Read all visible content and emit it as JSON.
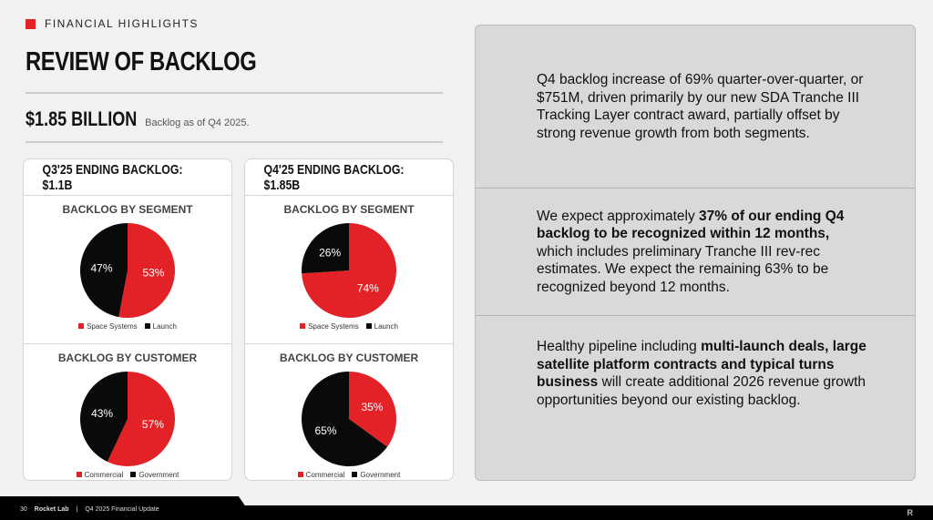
{
  "eyebrow": "FINANCIAL HIGHLIGHTS",
  "title": "REVIEW OF BACKLOG",
  "total": {
    "value": "$1.85 BILLION",
    "caption": "Backlog as of Q4 2025."
  },
  "colors": {
    "red": "#e32227",
    "black": "#0a0a0a"
  },
  "cards": [
    {
      "title": "Q3'25 ENDING BACKLOG: $1.1B",
      "segment": {
        "title": "BACKLOG BY SEGMENT",
        "legend": [
          "Space Systems",
          "Launch"
        ],
        "values": [
          53,
          47
        ],
        "labels": [
          "53%",
          "47%"
        ]
      },
      "customer": {
        "title": "BACKLOG BY CUSTOMER",
        "legend": [
          "Commercial",
          "Government"
        ],
        "values": [
          57,
          43
        ],
        "labels": [
          "57%",
          "43%"
        ]
      }
    },
    {
      "title": "Q4'25 ENDING BACKLOG: $1.85B",
      "segment": {
        "title": "BACKLOG BY SEGMENT",
        "legend": [
          "Space Systems",
          "Launch"
        ],
        "values": [
          74,
          26
        ],
        "labels": [
          "74%",
          "26%"
        ]
      },
      "customer": {
        "title": "BACKLOG BY CUSTOMER",
        "legend": [
          "Commercial",
          "Government"
        ],
        "values": [
          35,
          65
        ],
        "labels": [
          "35%",
          "65%"
        ]
      }
    }
  ],
  "panel": [
    {
      "html": "Q4 backlog increase of 69% quarter-over-quarter, or $751M, driven primarily by our new SDA Tranche III Tracking Layer contract award, partially offset by strong revenue growth from both segments."
    },
    {
      "html": "We expect approximately <b>37% of our ending Q4 backlog to be recognized within 12 months,</b> which includes preliminary Tranche III rev-rec estimates. We expect the remaining 63% to be recognized beyond 12 months."
    },
    {
      "html": "Healthy pipeline including <b>multi-launch deals, large satellite platform contracts and typical turns business</b> will create additional 2026 revenue growth opportunities beyond our existing backlog."
    }
  ],
  "footer": {
    "page": "30",
    "company": "Rocket Lab",
    "sep": "|",
    "doc": "Q4 2025 Financial Update",
    "logo": "R"
  }
}
